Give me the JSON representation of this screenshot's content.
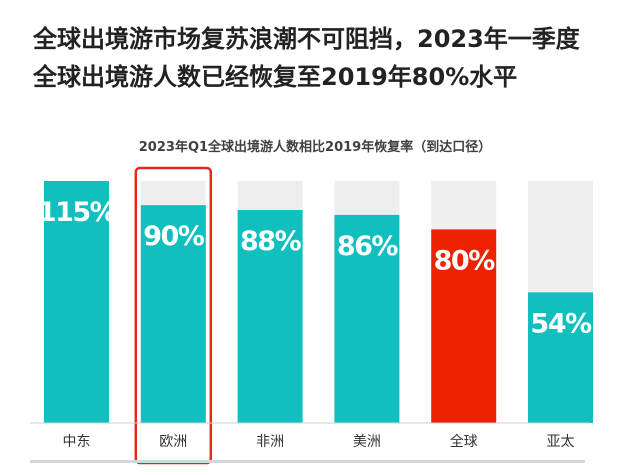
{
  "headline": {
    "line1": "全球出境游市场复苏浪潮不可阻挡，2023年一季度",
    "line2": "全球出境游人数已经恢复至2019年80%水平"
  },
  "chart_data": {
    "type": "bar",
    "title": "2023年Q1全球出境游人数相比2019年恢复率（到达口径）",
    "categories": [
      "中东",
      "欧洲",
      "非洲",
      "美洲",
      "全球",
      "亚太"
    ],
    "values": [
      115,
      90,
      88,
      86,
      80,
      54
    ],
    "value_labels": [
      "115%",
      "90%",
      "88%",
      "86%",
      "80%",
      "54%"
    ],
    "unit": "%",
    "ylim": [
      0,
      100
    ],
    "background_to": 100,
    "grid": false,
    "legend": "none",
    "highlighted_category": "欧洲",
    "colors": {
      "bar": "#11bfbf",
      "highlight_bar": "#ee2200",
      "background_bar": "#eeeeee",
      "box": "#e8271c",
      "label": "#ffffff",
      "category_text": "#333333"
    }
  }
}
